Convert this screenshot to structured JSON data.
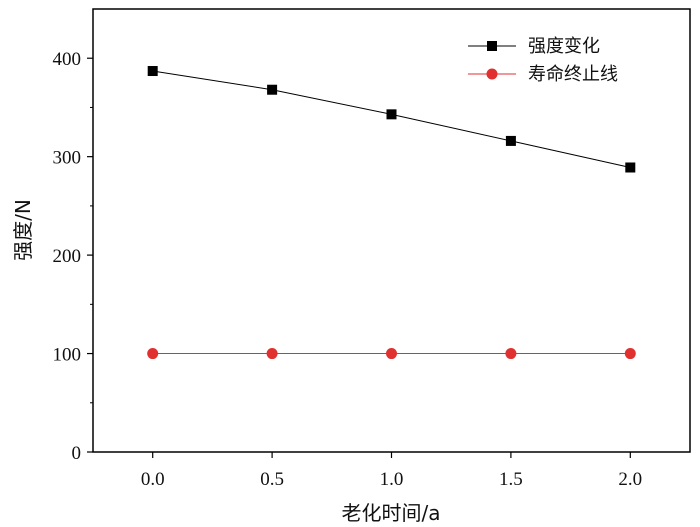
{
  "chart_data": {
    "type": "line",
    "title": "",
    "xlabel": "老化时间/a",
    "ylabel": "强度/N",
    "xlim": [
      -0.25,
      2.25
    ],
    "ylim": [
      0,
      450
    ],
    "xticks": [
      "0.0",
      "0.5",
      "1.0",
      "1.5",
      "2.0"
    ],
    "xtick_values": [
      0,
      0.5,
      1.0,
      1.5,
      2.0
    ],
    "yticks": [
      "0",
      "100",
      "200",
      "300",
      "400"
    ],
    "ytick_values": [
      0,
      100,
      200,
      300,
      400
    ],
    "grid": false,
    "legend_position": "top-right",
    "x": [
      0,
      0.5,
      1.0,
      1.5,
      2.0
    ],
    "series": [
      {
        "name": "强度变化",
        "values": [
          387,
          368,
          343,
          316,
          289
        ],
        "color": "#000000",
        "marker": "square"
      },
      {
        "name": "寿命终止线",
        "values": [
          100,
          100,
          100,
          100,
          100
        ],
        "color": "#e03030",
        "marker": "circle"
      }
    ]
  }
}
